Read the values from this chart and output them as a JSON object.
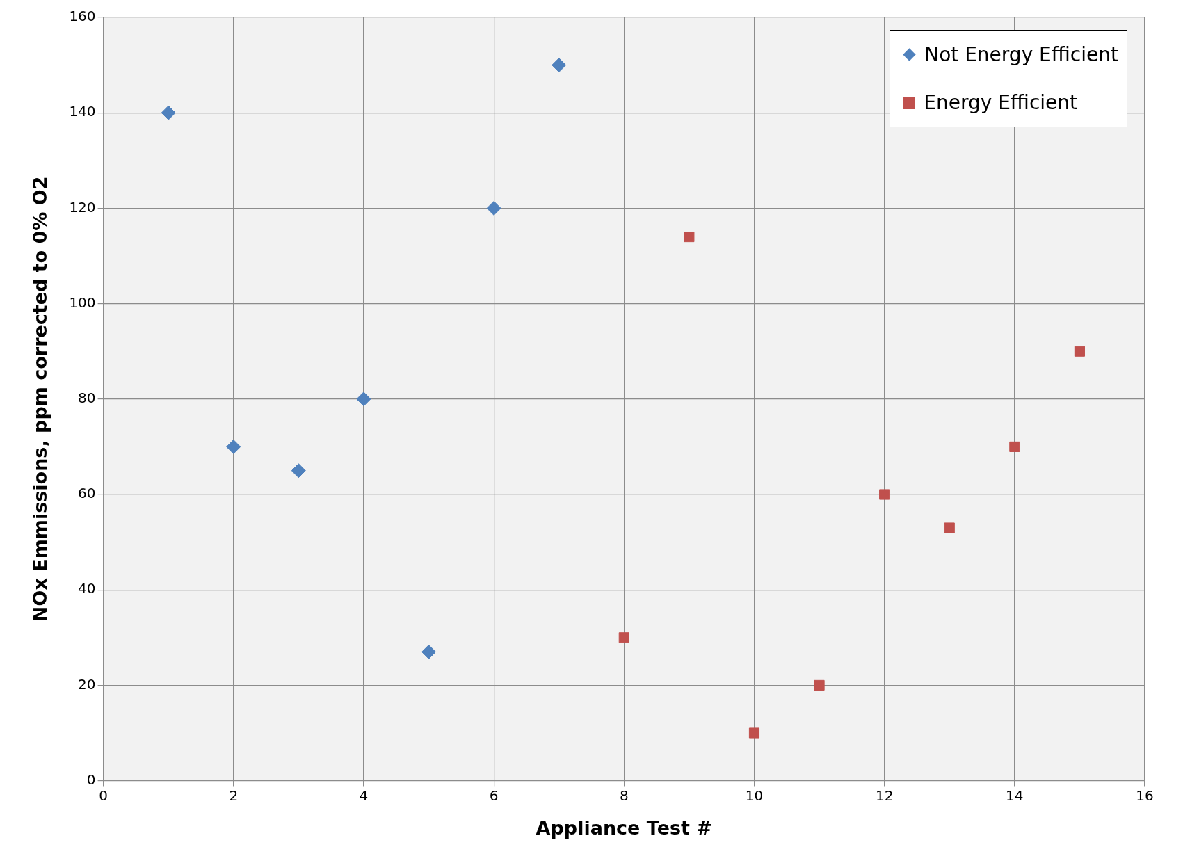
{
  "chart_data": {
    "type": "scatter",
    "xlabel": "Appliance Test #",
    "ylabel": "NOx Emmissions, ppm corrected to 0% O2",
    "xlim": [
      0,
      16
    ],
    "xticks": [
      0,
      2,
      4,
      6,
      8,
      10,
      12,
      14,
      16
    ],
    "ylim": [
      0,
      160
    ],
    "yticks": [
      0,
      20,
      40,
      60,
      80,
      100,
      120,
      140,
      160
    ],
    "grid": true,
    "legend": "top right",
    "series": [
      {
        "name": "Not Energy Efficient",
        "color": "#4f81bd",
        "marker": "diamond",
        "x": [
          1,
          2,
          3,
          4,
          5,
          6,
          7
        ],
        "values": [
          140,
          70,
          65,
          80,
          27,
          120,
          150
        ]
      },
      {
        "name": "Energy Efficient",
        "color": "#c0504d",
        "marker": "square",
        "x": [
          8,
          9,
          10,
          11,
          12,
          13,
          14,
          15
        ],
        "values": [
          30,
          114,
          10,
          20,
          60,
          53,
          70,
          90
        ]
      }
    ]
  }
}
